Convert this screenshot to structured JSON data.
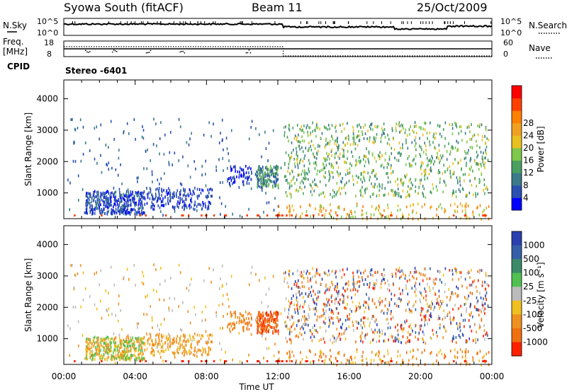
{
  "header": {
    "title": "Syowa South (fitACF)",
    "beam": "Beam 11",
    "date": "25/Oct/2009"
  },
  "top_panels": {
    "noise": {
      "left_label": "N.Sky",
      "right_label": "N.Search",
      "ticks": [
        "10^5",
        "10^0"
      ]
    },
    "freq": {
      "left_label_1": "Freq.",
      "left_label_2": "[MHz]",
      "left_ticks": [
        "18",
        "8"
      ],
      "right_label": "Nave",
      "right_ticks": [
        "60",
        "0"
      ]
    },
    "cpid": {
      "label": "CPID",
      "value": "Stereo -6401"
    }
  },
  "chart_data": [
    {
      "type": "heatmap",
      "title": "",
      "xlabel": "Time UT",
      "ylabel": "Slant Range [km]",
      "x_ticks": [
        "00:00",
        "04:00",
        "08:00",
        "12:00",
        "16:00",
        "20:00",
        "00:00"
      ],
      "y_ticks": [
        "1000",
        "2000",
        "3000",
        "4000"
      ],
      "ylim": [
        180,
        4600
      ],
      "xlim_hours": [
        0,
        24
      ],
      "colorbar": {
        "label": "Power [dB]",
        "ticks": [
          "4",
          "8",
          "12",
          "16",
          "20",
          "24",
          "28"
        ],
        "colors": [
          "#0000ff",
          "#2a4fb0",
          "#3a7a8a",
          "#4aa060",
          "#7ec84a",
          "#e8c020",
          "#f0a020",
          "#ff8000",
          "#ff4000",
          "#ff0000"
        ]
      }
    },
    {
      "type": "heatmap",
      "title": "",
      "xlabel": "Time UT",
      "ylabel": "Slant Range [km]",
      "x_ticks": [
        "00:00",
        "04:00",
        "08:00",
        "12:00",
        "16:00",
        "20:00",
        "00:00"
      ],
      "y_ticks": [
        "1000",
        "2000",
        "3000",
        "4000"
      ],
      "ylim": [
        180,
        4600
      ],
      "xlim_hours": [
        0,
        24
      ],
      "colorbar": {
        "label": "Velocity [m s⁻¹]",
        "ticks": [
          "1000",
          "500",
          "100",
          "25",
          "-25",
          "-100",
          "-500",
          "-1000"
        ],
        "colors": [
          "#2a3fb0",
          "#3560a8",
          "#3b8a6a",
          "#50c050",
          "#bbbbbb",
          "#f0c020",
          "#f09020",
          "#f07010",
          "#ff2000"
        ]
      }
    }
  ]
}
